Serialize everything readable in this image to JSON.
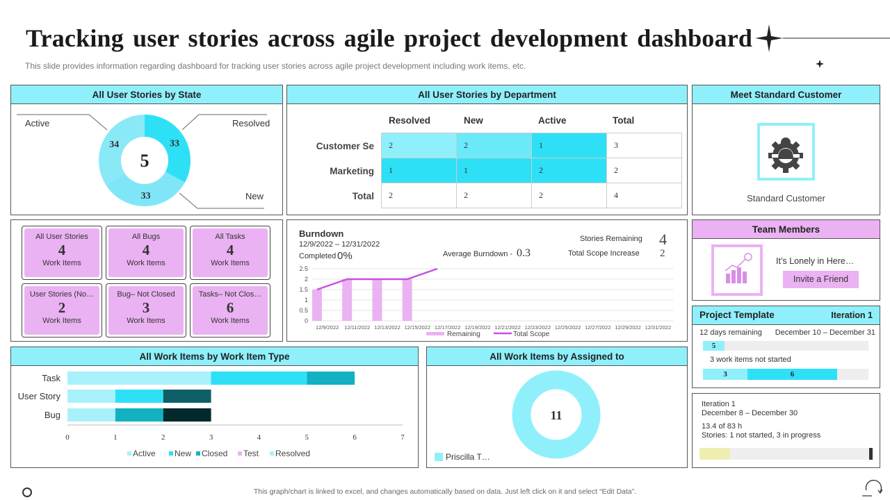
{
  "header": {
    "title": "Tracking user stories across agile project development dashboard",
    "subtitle": "This slide provides information regarding dashboard for tracking user stories across agile project development including work items, etc."
  },
  "state_panel": {
    "title": "All User Stories by State",
    "center": "5",
    "labels": {
      "active": "Active",
      "resolved": "Resolved",
      "new": "New"
    },
    "chart_data": {
      "type": "pie",
      "title": "All User Stories by State",
      "labels": [
        "Active",
        "Resolved",
        "New"
      ],
      "values": [
        34,
        33,
        33
      ],
      "value_labels": [
        "34",
        "33",
        "33"
      ],
      "colors": [
        "#8ae9f7",
        "#2ee0f5",
        "#7fe6f7"
      ]
    }
  },
  "dept_panel": {
    "title": "All User Stories by Department",
    "columns": [
      "Resolved",
      "New",
      "Active",
      "Total"
    ],
    "rows": [
      {
        "label": "Customer Se",
        "values": [
          "2",
          "2",
          "1",
          "3"
        ]
      },
      {
        "label": "Marketing",
        "values": [
          "1",
          "1",
          "2",
          "2"
        ]
      },
      {
        "label": "Total",
        "values": [
          "2",
          "2",
          "2",
          "4"
        ]
      }
    ]
  },
  "customer_panel": {
    "title": "Meet Standard Customer",
    "name": "Standard Customer"
  },
  "kpis": [
    {
      "label": "All User Stories",
      "value": "4",
      "unit": "Work Items"
    },
    {
      "label": "All Bugs",
      "value": "4",
      "unit": "Work Items"
    },
    {
      "label": "All Tasks",
      "value": "4",
      "unit": "Work Items"
    },
    {
      "label": "User Stories (No…",
      "value": "2",
      "unit": "Work Items"
    },
    {
      "label": "Bug– Not Closed",
      "value": "3",
      "unit": "Work Items"
    },
    {
      "label": "Tasks– Not Clos…",
      "value": "6",
      "unit": "Work Items"
    }
  ],
  "burndown": {
    "title": "Burndown",
    "date_range": "12/9/2022 – 12/31/2022",
    "completed_label": "Completed",
    "completed_value": "0%",
    "avg_label": "Average Burndown -",
    "avg_value": "0.3",
    "stories_remaining_label": "Stories Remaining",
    "stories_remaining_value": "4",
    "scope_increase_label": "Total Scope Increase",
    "scope_increase_value": "2",
    "chart_data": {
      "type": "bar",
      "title": "Burndown",
      "categories": [
        "12/9/2022",
        "12/11/2022",
        "12/13/2022",
        "12/15/2022",
        "12/17/2022",
        "12/19/2022",
        "12/21/2022",
        "12/23/2022",
        "12/25/2022",
        "12/27/2022",
        "12/29/2022",
        "12/31/2022"
      ],
      "y_ticks": [
        "0",
        "0.5",
        "1",
        "1.5",
        "2",
        "2.5"
      ],
      "ylim": [
        0,
        2.5
      ],
      "series": [
        {
          "name": "Remaining",
          "type": "bar",
          "color": "#eab2f2",
          "values": [
            1.5,
            2,
            2,
            2,
            null,
            null,
            null,
            null,
            null,
            null,
            null,
            null
          ]
        },
        {
          "name": "Total Scope",
          "type": "line",
          "color": "#c84fe0",
          "values": [
            1.5,
            2,
            2,
            2,
            2.5,
            null,
            null,
            null,
            null,
            null,
            null,
            null
          ]
        }
      ]
    }
  },
  "team_panel": {
    "title": "Team Members",
    "message": "It’s Lonely in Here…",
    "invite_label": "Invite  a Friend"
  },
  "project_panel": {
    "title": "Project Template",
    "iteration": "Iteration 1",
    "days_remaining": "12 days remaining",
    "date_range": "December 10 – December 31",
    "bar1_value": "5",
    "bar1_fraction": 0.13,
    "not_started_text": "3 work items not started",
    "bar2_values": [
      "3",
      "6"
    ],
    "bar2_fractions": [
      0.27,
      0.54
    ]
  },
  "iteration_panel": {
    "name": "Iteration 1",
    "date_range": "December 8 – December 30",
    "hours": "13.4 of 83 h",
    "stories": "Stories: 1 not started, 3 in progress",
    "progress_fraction": 0.18
  },
  "type_panel": {
    "title": "All Work Items by Work Item Type",
    "chart_data": {
      "type": "bar",
      "orientation": "horizontal",
      "stacked": true,
      "title": "All Work Items by Work Item Type",
      "categories": [
        "Task",
        "User Story",
        "Bug"
      ],
      "x_ticks": [
        "0",
        "1",
        "2",
        "3",
        "4",
        "5",
        "6",
        "7"
      ],
      "xlim": [
        0,
        7
      ],
      "series": [
        {
          "name": "Active",
          "color": "#a8f1fb",
          "values": [
            3,
            1,
            1
          ]
        },
        {
          "name": "New",
          "color": "#2ee0f5",
          "values": [
            2,
            1,
            1
          ]
        },
        {
          "name": "Closed",
          "color": "#12b1c2",
          "values": [
            1,
            1,
            1
          ]
        },
        {
          "name": "Test",
          "color": "#eab2f2",
          "values": [
            0,
            0,
            0
          ]
        },
        {
          "name": "Resolved",
          "color": "#a8f1fb",
          "values": [
            0,
            0,
            0
          ]
        }
      ],
      "segment_colors": [
        [
          "#a8f1fb",
          "#2ee0f5",
          "#12b1c2"
        ],
        [
          "#a8f1fb",
          "#2ee0f5",
          "#0e5f68"
        ],
        [
          "#a8f1fb",
          "#12b1c2",
          "#04292d"
        ]
      ]
    }
  },
  "assigned_panel": {
    "title": "All Work Items by Assigned  to",
    "center": "11",
    "legend": "Priscilla T…",
    "chart_data": {
      "type": "pie",
      "title": "All Work Items by Assigned to",
      "labels": [
        "Priscilla T…"
      ],
      "values": [
        11
      ],
      "colors": [
        "#8ff0fb"
      ]
    }
  },
  "footer": {
    "note": "This graph/chart is linked to excel, and changes automatically based on data. Just left click on it and select “Edit Data”."
  },
  "colors": {
    "accent_cyan": "#8ff0fb",
    "accent_pink": "#eab2f2",
    "bright_cyan": "#2ee0f5"
  }
}
